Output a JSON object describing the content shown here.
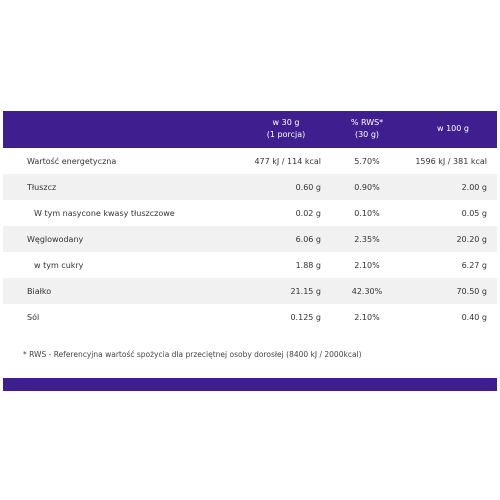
{
  "header": {
    "col1": [
      "w 30 g",
      "(1 porcja)"
    ],
    "col2": [
      "% RWS*",
      "(30 g)"
    ],
    "col3": "w 100 g"
  },
  "rows": [
    {
      "name": "Wartość energetyczna",
      "v30": "477 kJ / 114 kcal",
      "rws": "5.70%",
      "v100": "1596 kJ / 381 kcal"
    },
    {
      "name": "Tłuszcz",
      "v30": "0.60 g",
      "rws": "0.90%",
      "v100": "2.00 g"
    },
    {
      "name": "W tym nasycone kwasy tłuszczowe",
      "v30": "0.02 g",
      "rws": "0.10%",
      "v100": "0.05 g"
    },
    {
      "name": "Węglowodany",
      "v30": "6.06 g",
      "rws": "2.35%",
      "v100": "20.20 g"
    },
    {
      "name": "w tym cukry",
      "v30": "1.88 g",
      "rws": "2.10%",
      "v100": "6.27 g"
    },
    {
      "name": "Białko",
      "v30": "21.15 g",
      "rws": "42.30%",
      "v100": "70.50 g"
    },
    {
      "name": "Sól",
      "v30": "0.125 g",
      "rws": "2.10%",
      "v100": "0.40 g"
    }
  ],
  "footnote": "* RWS - Referencyjna wartość spożycia dla przeciętnej osoby dorosłej (8400 kJ / 2000kcal)",
  "colors": {
    "header": "#3f1f8f",
    "row_shade": "#f1f1f1"
  }
}
